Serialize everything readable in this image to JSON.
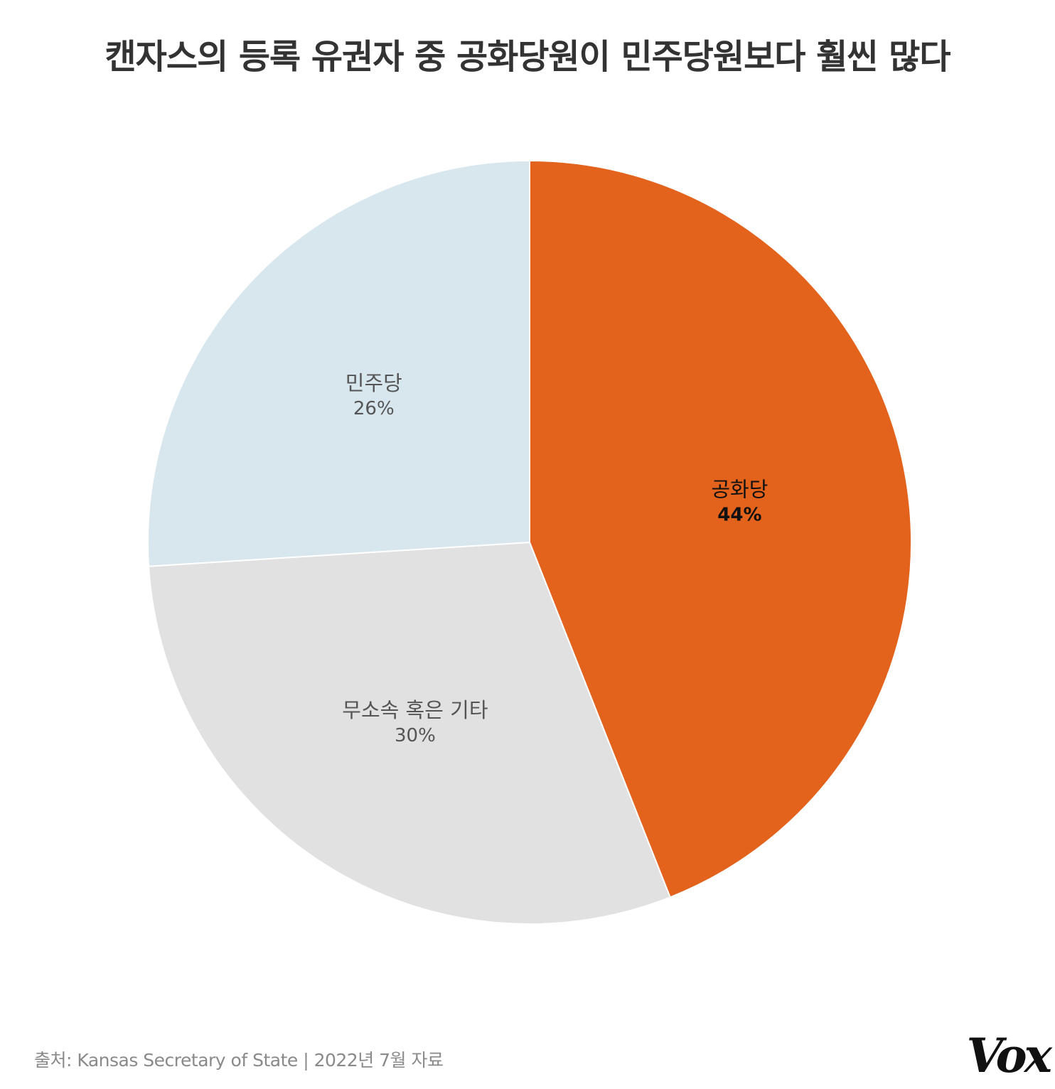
{
  "title": "캔자스의 등록 유권자 중 공화당원이 민주당원보다 훨씬 많다",
  "chart_data": {
    "type": "pie",
    "title": "캔자스의 등록 유권자 중 공화당원이 민주당원보다 훨씬 많다",
    "slices": [
      {
        "label": "공화당",
        "value": 44,
        "display": "44%",
        "color": "#e3621c",
        "label_color": "#111111",
        "value_bold": true
      },
      {
        "label": "무소속 혹은 기타",
        "value": 30,
        "display": "30%",
        "color": "#e1e1e1",
        "label_color": "#555555",
        "value_bold": false
      },
      {
        "label": "민주당",
        "value": 26,
        "display": "26%",
        "color": "#d8e6ee",
        "label_color": "#555555",
        "value_bold": false
      }
    ],
    "start": "12 o'clock",
    "direction": "clockwise",
    "legend": "none"
  },
  "footer": {
    "source": "출처: Kansas Secretary of State | 2022년 7월 자료",
    "logo": "Vox"
  }
}
